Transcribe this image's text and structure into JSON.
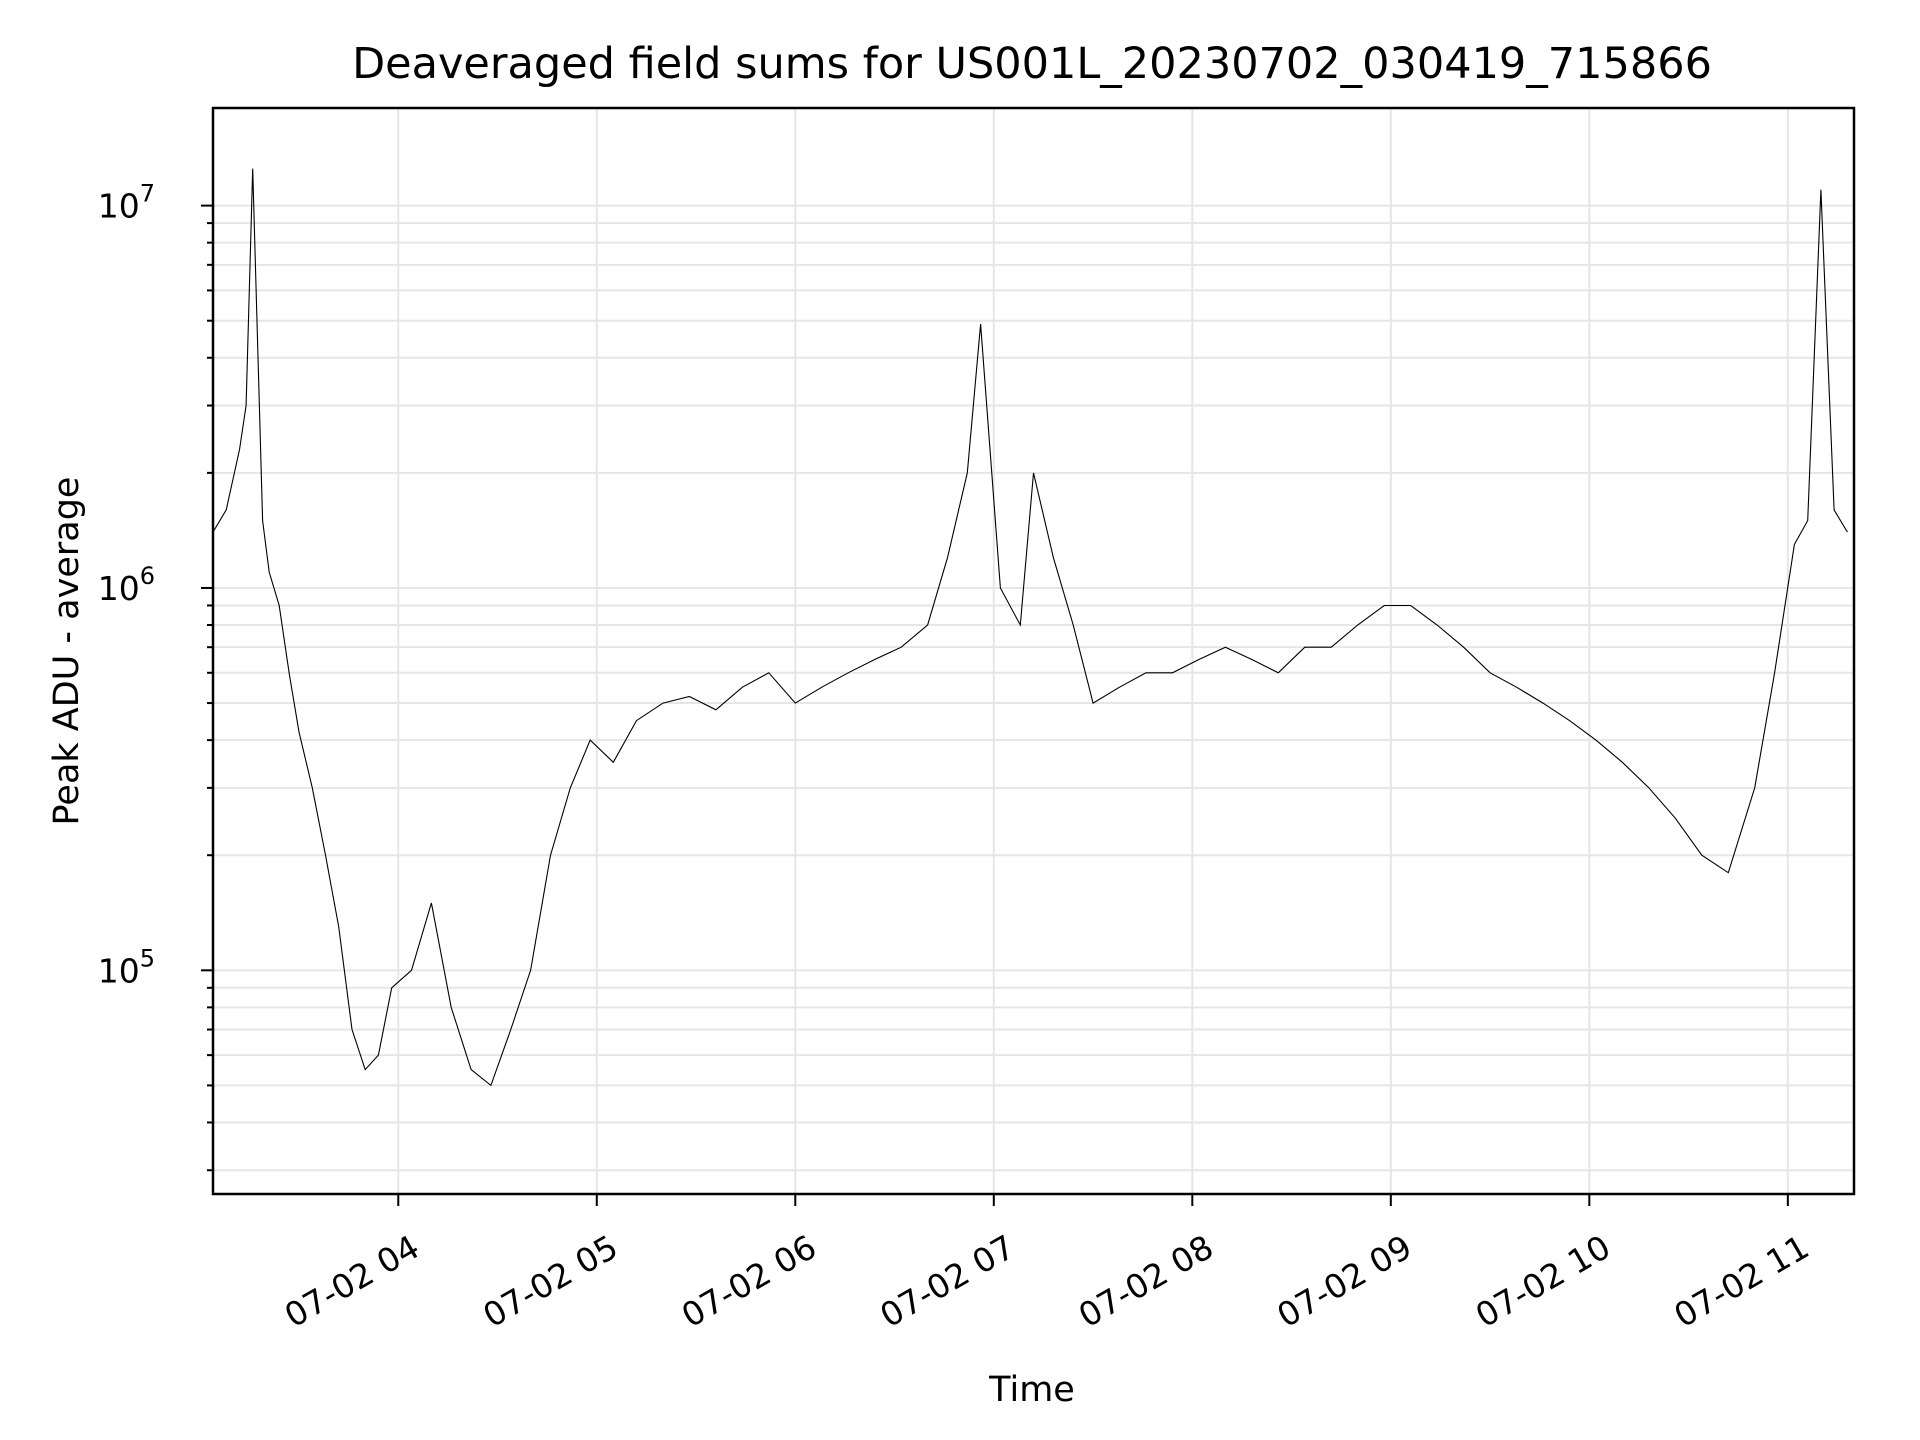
{
  "chart_data": {
    "type": "line",
    "title": "Deaveraged field sums for US001L_20230702_030419_715866",
    "xlabel": "Time",
    "ylabel": "Peak ADU - average",
    "yscale": "log",
    "ylim": [
      26000,
      18000000
    ],
    "xlim": [
      "07-02 03:04",
      "07-02 11:20"
    ],
    "grid": true,
    "x_ticks": [
      {
        "value": "07-02 04:00",
        "label": "07-02 04"
      },
      {
        "value": "07-02 05:00",
        "label": "07-02 05"
      },
      {
        "value": "07-02 06:00",
        "label": "07-02 06"
      },
      {
        "value": "07-02 07:00",
        "label": "07-02 07"
      },
      {
        "value": "07-02 08:00",
        "label": "07-02 08"
      },
      {
        "value": "07-02 09:00",
        "label": "07-02 09"
      },
      {
        "value": "07-02 10:00",
        "label": "07-02 10"
      },
      {
        "value": "07-02 11:00",
        "label": "07-02 11"
      }
    ],
    "y_ticks": [
      {
        "value": 100000,
        "base": "10",
        "exp": "5"
      },
      {
        "value": 1000000,
        "base": "10",
        "exp": "6"
      },
      {
        "value": 10000000,
        "base": "10",
        "exp": "7"
      }
    ],
    "series": [
      {
        "color": "#000000",
        "x": [
          "07-02 03:04",
          "07-02 03:08",
          "07-02 03:12",
          "07-02 03:14",
          "07-02 03:16",
          "07-02 03:19",
          "07-02 03:21",
          "07-02 03:24",
          "07-02 03:27",
          "07-02 03:30",
          "07-02 03:34",
          "07-02 03:38",
          "07-02 03:42",
          "07-02 03:46",
          "07-02 03:50",
          "07-02 03:54",
          "07-02 03:58",
          "07-02 04:04",
          "07-02 04:10",
          "07-02 04:16",
          "07-02 04:22",
          "07-02 04:28",
          "07-02 04:34",
          "07-02 04:40",
          "07-02 04:46",
          "07-02 04:52",
          "07-02 04:58",
          "07-02 05:05",
          "07-02 05:12",
          "07-02 05:20",
          "07-02 05:28",
          "07-02 05:36",
          "07-02 05:44",
          "07-02 05:52",
          "07-02 06:00",
          "07-02 06:08",
          "07-02 06:16",
          "07-02 06:24",
          "07-02 06:32",
          "07-02 06:40",
          "07-02 06:46",
          "07-02 06:52",
          "07-02 06:56",
          "07-02 07:02",
          "07-02 07:08",
          "07-02 07:12",
          "07-02 07:18",
          "07-02 07:24",
          "07-02 07:30",
          "07-02 07:38",
          "07-02 07:46",
          "07-02 07:54",
          "07-02 08:02",
          "07-02 08:10",
          "07-02 08:18",
          "07-02 08:26",
          "07-02 08:34",
          "07-02 08:42",
          "07-02 08:50",
          "07-02 08:58",
          "07-02 09:06",
          "07-02 09:14",
          "07-02 09:22",
          "07-02 09:30",
          "07-02 09:38",
          "07-02 09:46",
          "07-02 09:54",
          "07-02 10:02",
          "07-02 10:10",
          "07-02 10:18",
          "07-02 10:26",
          "07-02 10:34",
          "07-02 10:42",
          "07-02 10:50",
          "07-02 10:56",
          "07-02 11:02",
          "07-02 11:06",
          "07-02 11:10",
          "07-02 11:14",
          "07-02 11:18"
        ],
        "y": [
          1400000,
          1600000,
          2300000,
          3000000,
          12500000,
          1500000,
          1100000,
          900000,
          600000,
          420000,
          300000,
          200000,
          130000,
          70000,
          55000,
          60000,
          90000,
          100000,
          150000,
          80000,
          55000,
          50000,
          70000,
          100000,
          200000,
          300000,
          400000,
          350000,
          450000,
          500000,
          520000,
          480000,
          550000,
          600000,
          500000,
          550000,
          600000,
          650000,
          700000,
          800000,
          1200000,
          2000000,
          4900000,
          1000000,
          800000,
          2000000,
          1200000,
          800000,
          500000,
          550000,
          600000,
          600000,
          650000,
          700000,
          650000,
          600000,
          700000,
          700000,
          800000,
          900000,
          900000,
          800000,
          700000,
          600000,
          550000,
          500000,
          450000,
          400000,
          350000,
          300000,
          250000,
          200000,
          180000,
          300000,
          600000,
          1300000,
          1500000,
          11000000,
          1600000,
          1400000
        ]
      }
    ]
  }
}
